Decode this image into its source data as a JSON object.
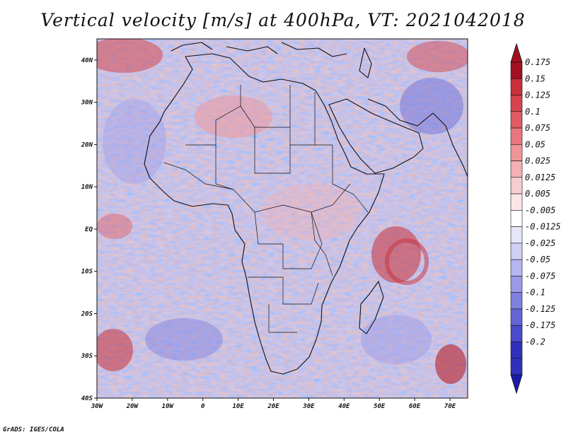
{
  "title": "Vertical velocity [m/s] at 400hPa, VT: 2021042018",
  "credit": "GrADS: IGES/COLA",
  "map": {
    "lon_range": [
      -30,
      75
    ],
    "lat_range": [
      -40,
      45
    ],
    "lon_ticks": [
      {
        "value": -30,
        "label": "30W"
      },
      {
        "value": -20,
        "label": "20W"
      },
      {
        "value": -10,
        "label": "10W"
      },
      {
        "value": 0,
        "label": "0"
      },
      {
        "value": 10,
        "label": "10E"
      },
      {
        "value": 20,
        "label": "20E"
      },
      {
        "value": 30,
        "label": "30E"
      },
      {
        "value": 40,
        "label": "40E"
      },
      {
        "value": 50,
        "label": "50E"
      },
      {
        "value": 60,
        "label": "60E"
      },
      {
        "value": 70,
        "label": "70E"
      }
    ],
    "lat_ticks": [
      {
        "value": 40,
        "label": "40N"
      },
      {
        "value": 30,
        "label": "30N"
      },
      {
        "value": 20,
        "label": "20N"
      },
      {
        "value": 10,
        "label": "10N"
      },
      {
        "value": 0,
        "label": "EQ"
      },
      {
        "value": -10,
        "label": "10S"
      },
      {
        "value": -20,
        "label": "20S"
      },
      {
        "value": -30,
        "label": "30S"
      },
      {
        "value": -40,
        "label": "40S"
      }
    ]
  },
  "colorbar": {
    "levels": [
      {
        "label": "0.175",
        "color": "#b8202a"
      },
      {
        "label": "0.15",
        "color": "#c8303a"
      },
      {
        "label": "0.125",
        "color": "#d5444d"
      },
      {
        "label": "0.1",
        "color": "#e05a62"
      },
      {
        "label": "0.075",
        "color": "#e8767c"
      },
      {
        "label": "0.05",
        "color": "#ef9498"
      },
      {
        "label": "0.025",
        "color": "#f4b0b3"
      },
      {
        "label": "0.0125",
        "color": "#f8cdcf"
      },
      {
        "label": "0.005",
        "color": "#fbe6e7"
      },
      {
        "label": "-0.005",
        "color": "#ffffff"
      },
      {
        "label": "-0.0125",
        "color": "#e6e6fa"
      },
      {
        "label": "-0.025",
        "color": "#cfcff5"
      },
      {
        "label": "-0.05",
        "color": "#b5b5ef"
      },
      {
        "label": "-0.075",
        "color": "#9a9ae8"
      },
      {
        "label": "-0.1",
        "color": "#7f7fe0"
      },
      {
        "label": "-0.125",
        "color": "#6565d6"
      },
      {
        "label": "-0.175",
        "color": "#4a4acb"
      },
      {
        "label": "-0.2",
        "color": "#3030bd"
      }
    ],
    "top_color": "#a01020",
    "bottom_color": "#1a1aa8"
  }
}
